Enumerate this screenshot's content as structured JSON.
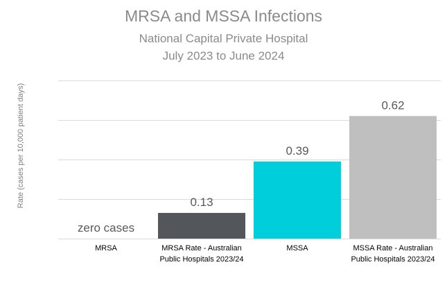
{
  "chart_data": {
    "type": "bar",
    "title": "MRSA and MSSA Infections",
    "subtitle": [
      "National Capital Private Hospital",
      "July 2023 to June 2024"
    ],
    "xlabel": "",
    "ylabel": "Rate (cases  per 10,000 patient days)",
    "ylim": [
      0,
      0.8
    ],
    "grid": true,
    "categories": [
      [
        "MRSA"
      ],
      [
        "MRSA Rate - Australian",
        "Public Hospitals 2023/24"
      ],
      [
        "MSSA"
      ],
      [
        "MSSA Rate - Australian",
        "Public Hospitals 2023/24"
      ]
    ],
    "values": [
      0,
      0.13,
      0.39,
      0.62
    ],
    "data_labels": [
      "zero cases",
      "0.13",
      "0.39",
      "0.62"
    ],
    "colors": [
      "#ffffff",
      "#53565a",
      "#00ceda",
      "#bfbfbf"
    ],
    "label_color": "#595959",
    "gridline_color": "#d9d9d9"
  }
}
